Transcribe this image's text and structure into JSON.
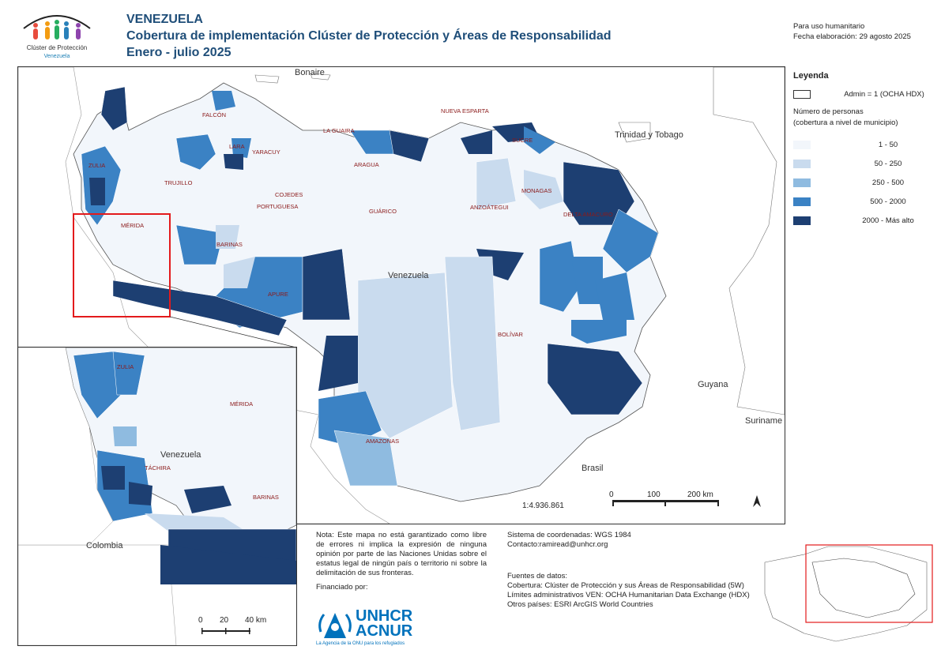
{
  "header": {
    "country": "VENEZUELA",
    "title": "Cobertura de implementación Clúster de Protección y Áreas de Responsabilidad",
    "period": "Enero - julio 2025",
    "usage": "Para uso humanitario",
    "date": "Fecha elaboración: 29 agosto 2025"
  },
  "logo": {
    "org": "Clúster de Protección",
    "country": "Venezuela"
  },
  "legend": {
    "heading": "Leyenda",
    "admin_label": "Admin = 1 (OCHA HDX)",
    "persons_heading": "Número de personas",
    "persons_sub": "(cobertura a nivel de municipio)",
    "classes": [
      {
        "label": "1 - 50",
        "color": "#f2f6fb"
      },
      {
        "label": "50 - 250",
        "color": "#c9dbee"
      },
      {
        "label": "250 - 500",
        "color": "#8fbbe0"
      },
      {
        "label": "500 - 2000",
        "color": "#3b82c4"
      },
      {
        "label": "2000 - Más alto",
        "color": "#1d3f72"
      }
    ]
  },
  "map": {
    "countries": {
      "bonaire": "Bonaire",
      "trinidad": "Trinidad y Tobago",
      "venezuela": "Venezuela",
      "guyana": "Guyana",
      "suriname": "Suriname",
      "brasil": "Brasil",
      "colombia": "Colombia",
      "venezuela_inset": "Venezuela"
    },
    "states": {
      "falcon": "FALCÓN",
      "zulia": "ZULIA",
      "lara": "LARA",
      "yaracuy": "YARACUY",
      "trujillo": "TRUJILLO",
      "cojedes": "COJEDES",
      "portuguesa": "PORTUGUESA",
      "merida": "MÉRIDA",
      "barinas": "BARINAS",
      "apure": "APURE",
      "guarico": "GUÁRICO",
      "anzoategui": "ANZOÁTEGUI",
      "monagas": "MONAGAS",
      "delta": "DELTA AMACURO",
      "nueva_esparta": "NUEVA ESPARTA",
      "sucre": "SUCRE",
      "la_guaira": "LA GUAIRA",
      "aragua": "ARAGUA",
      "bolivar": "BOLÍVAR",
      "amazonas": "AMAZONAS",
      "tachira": "TÁCHIRA"
    },
    "scale_ratio": "1:4.936.861",
    "scale_labels": [
      "0",
      "100",
      "200 km"
    ],
    "inset_scale_labels": [
      "0",
      "20",
      "40 km"
    ]
  },
  "notes": {
    "disclaimer": "Nota: Este mapa no está garantizado como libre de errores ni implica la expresión de ninguna opinión por parte de las Naciones Unidas sobre el estatus legal de ningún país o territorio ni sobre la delimitación de sus fronteras.",
    "funded_by": "Financiado por:",
    "crs": "Sistema de coordenadas: WGS 1984",
    "contact": "Contacto:ramiread@unhcr.org",
    "sources_heading": "Fuentes de datos:",
    "source_1": "Cobertura: Clúster de Protección y sus Áreas de Responsabilidad (5W)",
    "source_2": "Límites administrativos VEN: OCHA Humanitarian Data Exchange (HDX)",
    "source_3": "Otros países: ESRI ArcGIS World Countries"
  },
  "unhcr": {
    "line1": "UNHCR",
    "line2": "ACNUR",
    "tagline": "La Agencia de la ONU para los refugiados"
  }
}
